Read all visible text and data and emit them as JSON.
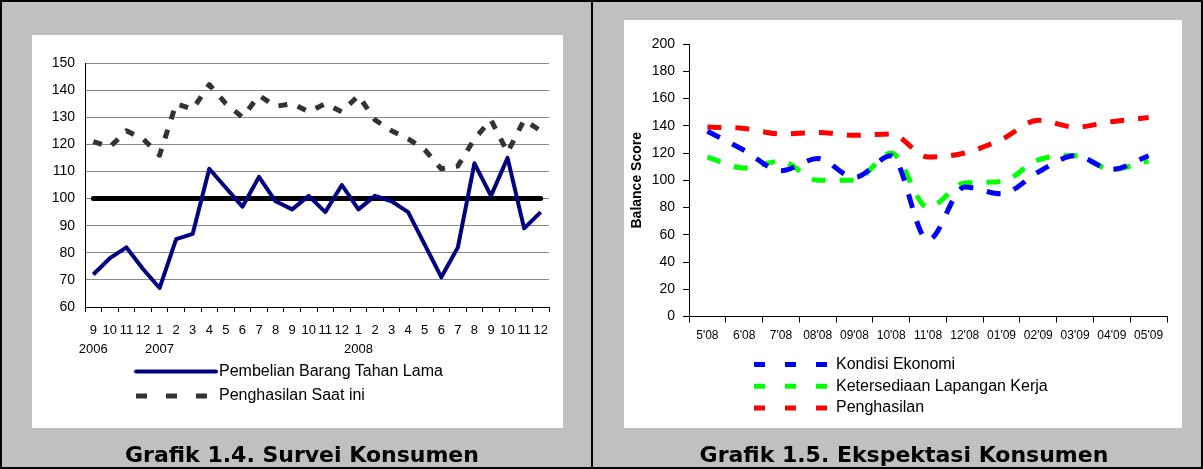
{
  "chart_data": [
    {
      "type": "line",
      "title": "Grafik 1.4. Survei Konsumen",
      "categories": [
        "9\n2006",
        "10",
        "11",
        "12",
        "1\n2007",
        "2",
        "3",
        "4",
        "5",
        "6",
        "7",
        "8",
        "9",
        "10",
        "11",
        "12",
        "1\n2008",
        "2",
        "3",
        "4",
        "5",
        "6",
        "7",
        "8",
        "9",
        "10",
        "11",
        "12"
      ],
      "series": [
        {
          "name": "Pembelian Barang Tahan Lama",
          "color": "#000080",
          "line_style": "solid",
          "values": [
            72,
            78,
            82,
            74,
            67,
            85,
            87,
            111,
            104,
            97,
            108,
            99,
            96,
            101,
            95,
            105,
            96,
            101,
            99,
            95,
            83,
            71,
            82,
            113,
            101,
            115,
            89,
            95
          ]
        },
        {
          "name": "Penghasilan Saat ini",
          "color": "#333333",
          "line_style": "dashed",
          "values": [
            121,
            119,
            125,
            122,
            116,
            135,
            133,
            142,
            135,
            130,
            138,
            134,
            135,
            132,
            135,
            132,
            138,
            129,
            125,
            122,
            118,
            111,
            112,
            122,
            129,
            117,
            129,
            125
          ]
        }
      ],
      "ref_lines": [
        {
          "axis": "y",
          "value": 100,
          "color": "#000000"
        }
      ],
      "ylim": [
        60,
        150
      ],
      "yticks": [
        60,
        70,
        80,
        90,
        100,
        110,
        120,
        130,
        140,
        150
      ],
      "grid": "y",
      "legend": "bottom",
      "marker": "none"
    },
    {
      "type": "line",
      "title": "Grafik 1.5. Ekspektasi Konsumen",
      "ylabel": "Balance Score",
      "categories": [
        "5'08",
        "6'08",
        "7'08",
        "08'08",
        "09'08",
        "10'08",
        "11'08",
        "12'08",
        "01'09",
        "02'09",
        "03'09",
        "04'09",
        "05'09"
      ],
      "series": [
        {
          "name": "Kondisi Ekonomi",
          "color": "#0000ff",
          "values": [
            136,
            122,
            107,
            116,
            102,
            118,
            56,
            95,
            90,
            106,
            118,
            108,
            118
          ]
        },
        {
          "name": "Ketersediaan Lapangan Kerja",
          "color": "#00ff00",
          "values": [
            117,
            109,
            114,
            100,
            100,
            120,
            80,
            98,
            99,
            115,
            118,
            108,
            114
          ]
        },
        {
          "name": "Penghasilan",
          "color": "#ff0000",
          "values": [
            139,
            138,
            134,
            135,
            133,
            134,
            117,
            120,
            130,
            144,
            139,
            143,
            146
          ]
        }
      ],
      "ylim": [
        0,
        200
      ],
      "yticks": [
        0,
        20,
        40,
        60,
        80,
        100,
        120,
        140,
        160,
        180,
        200
      ],
      "grid": false,
      "legend": "bottom",
      "line_style": "dashed",
      "marker": "none"
    }
  ]
}
